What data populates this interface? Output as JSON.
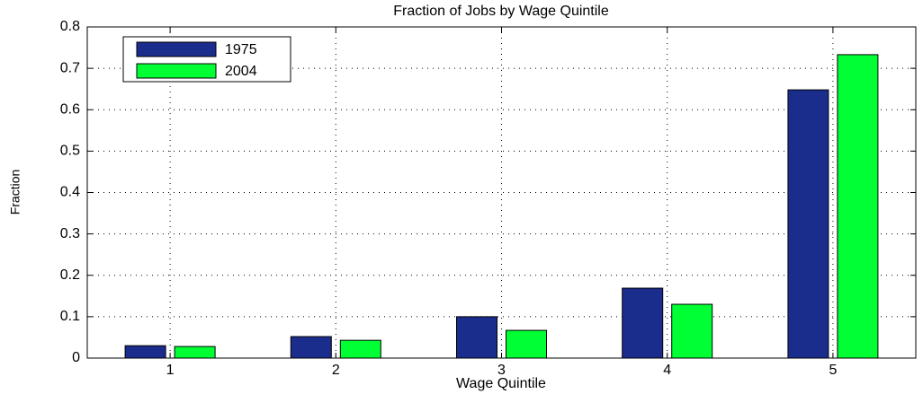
{
  "chart_data": {
    "type": "bar",
    "title": "Fraction of Jobs by Wage Quintile",
    "x_label": "Wage Quintile",
    "y_label": "Fraction",
    "categories": [
      "1",
      "2",
      "3",
      "4",
      "5"
    ],
    "series": [
      {
        "name": "1975",
        "color": "#1b2d8c",
        "values": [
          0.03,
          0.052,
          0.1,
          0.169,
          0.648
        ]
      },
      {
        "name": "2004",
        "color": "#00ff33",
        "values": [
          0.028,
          0.043,
          0.067,
          0.13,
          0.733
        ]
      }
    ],
    "ylim": [
      0,
      0.8
    ],
    "yticks": [
      0,
      0.1,
      0.2,
      0.3,
      0.4,
      0.5,
      0.6,
      0.7,
      0.8
    ],
    "grid": true,
    "legend": "upper-left"
  }
}
